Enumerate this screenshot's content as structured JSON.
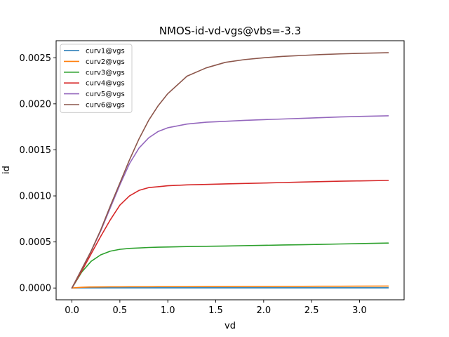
{
  "chart_data": {
    "type": "line",
    "title": "NMOS-id-vd-vgs@vbs=-3.3",
    "xlabel": "vd",
    "ylabel": "id",
    "xlim": [
      -0.165,
      3.465
    ],
    "ylim": [
      -0.000128,
      0.002685
    ],
    "xticks": [
      0.0,
      0.5,
      1.0,
      1.5,
      2.0,
      2.5,
      3.0
    ],
    "xtick_labels": [
      "0.0",
      "0.5",
      "1.0",
      "1.5",
      "2.0",
      "2.5",
      "3.0"
    ],
    "yticks": [
      0.0,
      0.0005,
      0.001,
      0.0015,
      0.002,
      0.0025
    ],
    "ytick_labels": [
      "0.0000",
      "0.0005",
      "0.0010",
      "0.0015",
      "0.0020",
      "0.0025"
    ],
    "grid": false,
    "legend_position": "top-left",
    "x": [
      0.0,
      0.1,
      0.2,
      0.3,
      0.4,
      0.5,
      0.6,
      0.7,
      0.8,
      0.9,
      1.0,
      1.2,
      1.4,
      1.6,
      1.8,
      2.0,
      2.2,
      2.4,
      2.6,
      2.8,
      3.0,
      3.3
    ],
    "series": [
      {
        "name": "curv1@vgs",
        "color": "#1f77b4",
        "values": [
          0.0,
          1.5e-06,
          2e-06,
          2e-06,
          2e-06,
          2e-06,
          2e-06,
          2e-06,
          2e-06,
          2e-06,
          2e-06,
          2e-06,
          2e-06,
          2e-06,
          2e-06,
          2e-06,
          2e-06,
          2e-06,
          2e-06,
          2e-06,
          2e-06,
          2e-06
        ]
      },
      {
        "name": "curv2@vgs",
        "color": "#ff7f0e",
        "values": [
          0.0,
          8e-06,
          1.1e-05,
          1.2e-05,
          1.3e-05,
          1.3e-05,
          1.4e-05,
          1.4e-05,
          1.4e-05,
          1.5e-05,
          1.5e-05,
          1.5e-05,
          1.6e-05,
          1.6e-05,
          1.7e-05,
          1.7e-05,
          1.8e-05,
          1.8e-05,
          1.9e-05,
          1.9e-05,
          2e-05,
          2.1e-05
        ]
      },
      {
        "name": "curv3@vgs",
        "color": "#2ca02c",
        "values": [
          0.0,
          0.00017,
          0.00029,
          0.00036,
          0.0004,
          0.00042,
          0.00043,
          0.000435,
          0.00044,
          0.000443,
          0.000445,
          0.00045,
          0.000453,
          0.000456,
          0.00046,
          0.000463,
          0.000467,
          0.00047,
          0.000474,
          0.000478,
          0.000482,
          0.000488
        ]
      },
      {
        "name": "curv4@vgs",
        "color": "#d62728",
        "values": [
          0.0,
          0.00018,
          0.00037,
          0.00056,
          0.00074,
          0.0009,
          0.001,
          0.00106,
          0.00109,
          0.0011,
          0.00111,
          0.00112,
          0.001125,
          0.00113,
          0.001135,
          0.00114,
          0.001145,
          0.00115,
          0.001155,
          0.00116,
          0.001163,
          0.001168
        ]
      },
      {
        "name": "curv5@vgs",
        "color": "#9467bd",
        "values": [
          0.0,
          0.0002,
          0.0004,
          0.00062,
          0.00087,
          0.00112,
          0.00135,
          0.00152,
          0.00163,
          0.0017,
          0.00174,
          0.00178,
          0.0018,
          0.00181,
          0.00182,
          0.001828,
          0.001835,
          0.001842,
          0.00185,
          0.001857,
          0.001863,
          0.00187
        ]
      },
      {
        "name": "curv6@vgs",
        "color": "#8c564b",
        "values": [
          0.0,
          0.0002,
          0.0004,
          0.00063,
          0.00089,
          0.00114,
          0.00139,
          0.00162,
          0.00182,
          0.00198,
          0.00211,
          0.0023,
          0.00239,
          0.00245,
          0.00248,
          0.0025,
          0.002515,
          0.002525,
          0.002535,
          0.002542,
          0.002548,
          0.002555
        ]
      }
    ]
  }
}
